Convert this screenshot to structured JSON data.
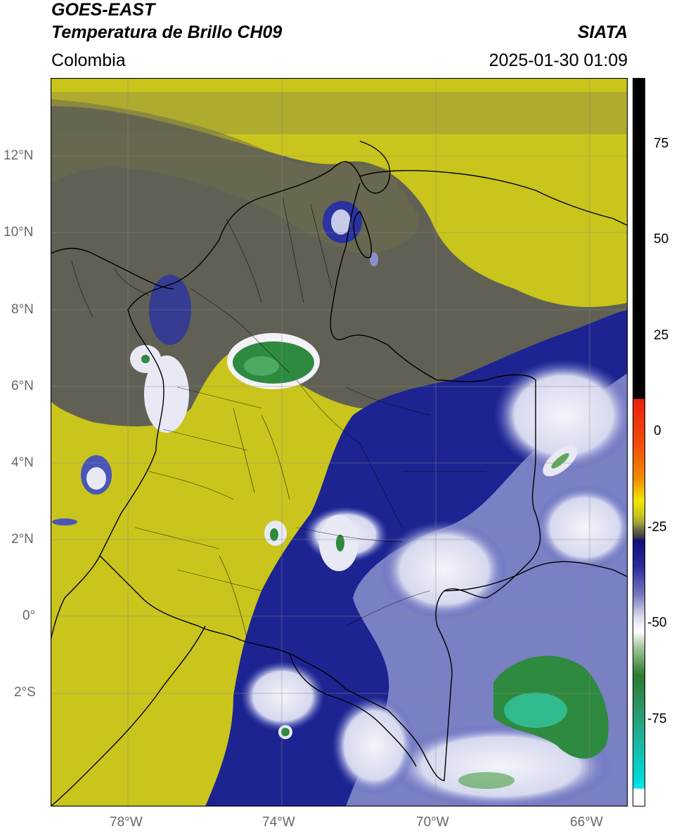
{
  "header": {
    "title_line1": "GOES-EAST",
    "title_line2": "Temperatura de Brillo CH09",
    "region": "Colombia",
    "agency": "SIATA",
    "datetime": "2025-01-30 01:09"
  },
  "map": {
    "lon_ticks": [
      "78°W",
      "74°W",
      "70°W",
      "66°W"
    ],
    "lat_ticks": [
      "12°N",
      "10°N",
      "8°N",
      "6°N",
      "4°N",
      "2°N",
      "0°",
      "2°S"
    ],
    "colors": {
      "yellow": "#c9c51c",
      "olive": "#8e8d3e",
      "dark_gray": "#4d4f5e",
      "navy": "#1d2491",
      "blue": "#4a55b8",
      "white": "#ecedf6",
      "green": "#2e8a3e",
      "teal": "#33c9a9"
    }
  },
  "colorbar": {
    "ticks": [
      "75",
      "50",
      "25",
      "0",
      "-25",
      "-50",
      "-75"
    ],
    "colors": {
      "top": "#000000",
      "red": "#e8220e",
      "orange": "#f08c00",
      "yellow": "#f0e600",
      "olive": "#a8a433",
      "gray": "#3d3d3d",
      "navy": "#10107a",
      "light": "#dcdcec",
      "green": "#2d7a2d",
      "cyan": "#00d8d8"
    }
  }
}
